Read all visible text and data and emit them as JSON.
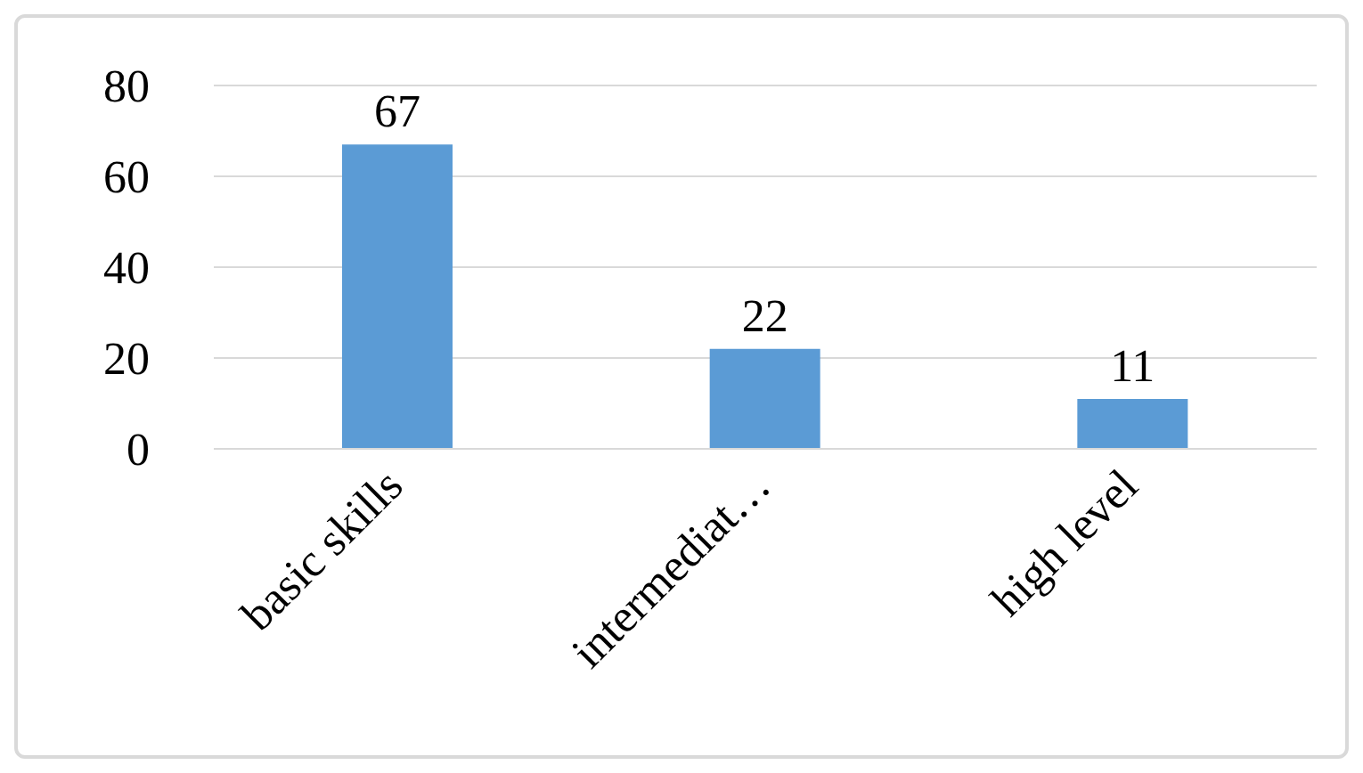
{
  "chart_data": {
    "type": "bar",
    "categories": [
      "basic skills",
      "intermediat…",
      "high level"
    ],
    "values": [
      67,
      22,
      11
    ],
    "color": "#5b9bd5",
    "ylim": [
      0,
      80
    ],
    "yticks": [
      0,
      20,
      40,
      60,
      80
    ],
    "grid": "y",
    "data_labels": true
  }
}
